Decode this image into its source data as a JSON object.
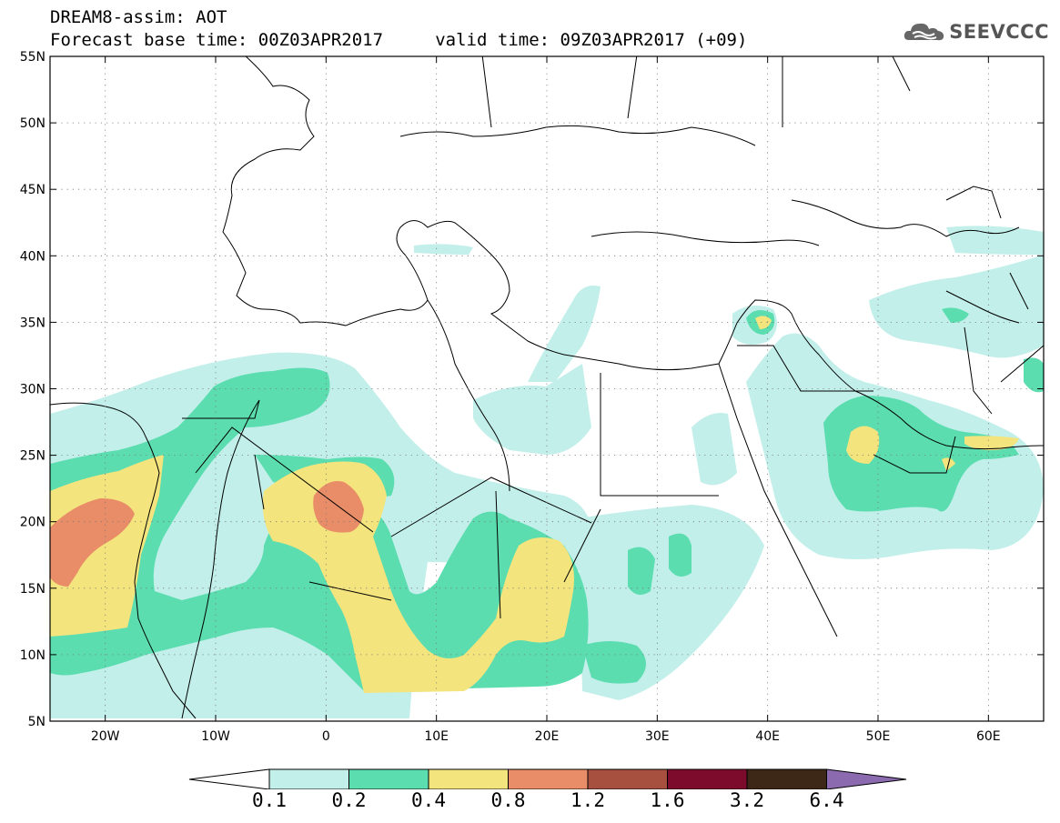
{
  "header": {
    "title_line1": "DREAM8-assim: AOT",
    "title_line2": "Forecast base time: 00Z03APR2017     valid time: 09Z03APR2017 (+09)",
    "logo_text": "SEEVCCC"
  },
  "map": {
    "projection": "latitude-longitude",
    "lon_range": [
      -25,
      65
    ],
    "lat_range": [
      5,
      55
    ],
    "lat_ticks": [
      "55N",
      "50N",
      "45N",
      "40N",
      "35N",
      "30N",
      "25N",
      "20N",
      "15N",
      "10N",
      "5N"
    ],
    "lon_ticks": [
      "20W",
      "10W",
      "0",
      "10E",
      "20E",
      "30E",
      "40E",
      "50E",
      "60E"
    ],
    "grid": "dotted"
  },
  "colorbar": {
    "labels": [
      "0.1",
      "0.2",
      "0.4",
      "0.8",
      "1.2",
      "1.6",
      "3.2",
      "6.4"
    ],
    "colors": [
      "#c2efea",
      "#5bddb0",
      "#f3e47e",
      "#e98d68",
      "#a8503f",
      "#7d0c2c",
      "#3d2717",
      "#8c6ab0"
    ]
  }
}
